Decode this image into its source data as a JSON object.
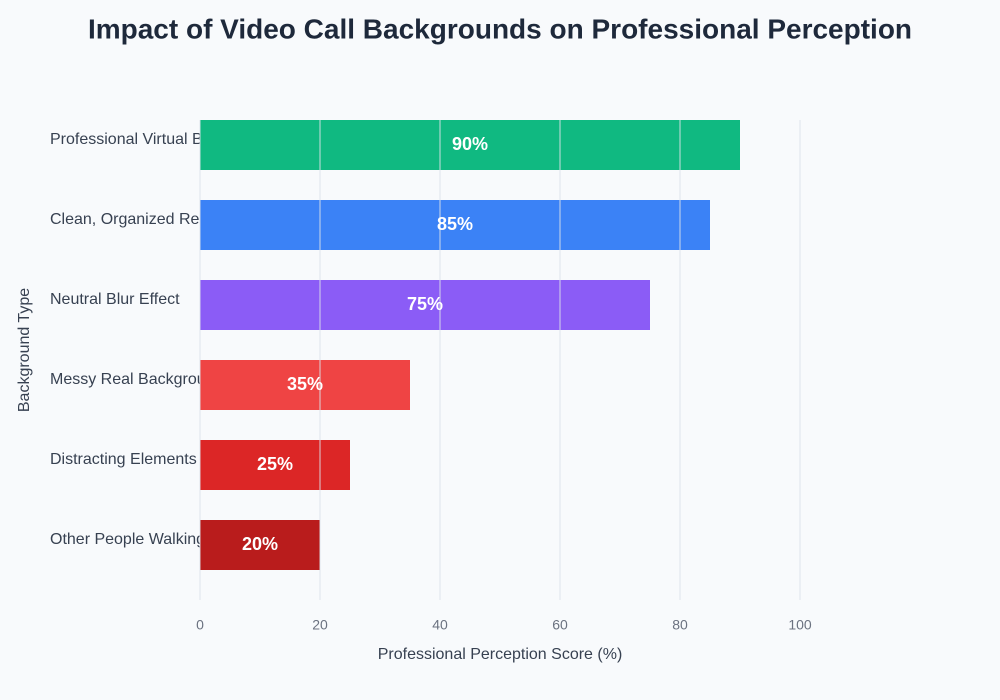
{
  "chart_data": {
    "type": "bar",
    "orientation": "horizontal",
    "title": "Impact of Video Call Backgrounds on Professional Perception",
    "x_label": "Professional Perception Score (%)",
    "y_label": "Background Type",
    "categories": [
      "Professional Virtual B",
      "Clean, Organized Re",
      "Neutral Blur Effect",
      "Messy Real Backgrou",
      "Distracting Elements",
      "Other People Walking"
    ],
    "values": [
      90,
      85,
      75,
      35,
      25,
      20
    ],
    "value_labels": [
      "90%",
      "85%",
      "75%",
      "35%",
      "25%",
      "20%"
    ],
    "colors": [
      "#10b981",
      "#3b82f6",
      "#8b5cf6",
      "#ef4444",
      "#dc2626",
      "#b91c1c"
    ],
    "xlim": [
      0,
      100
    ],
    "xticks": [
      0,
      20,
      40,
      60,
      80,
      100
    ],
    "grid": true
  }
}
